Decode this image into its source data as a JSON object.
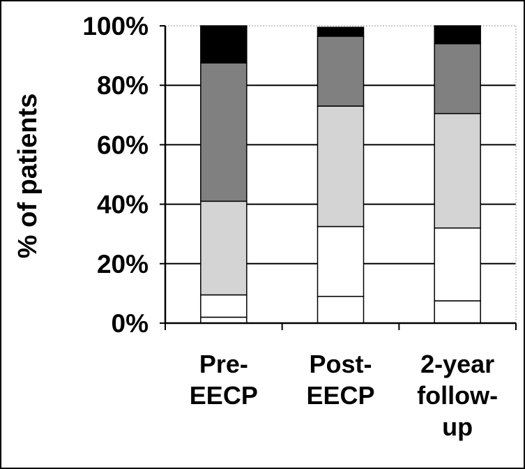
{
  "chart_data": {
    "type": "bar",
    "stacked": true,
    "ylabel": "% of patients",
    "xlabel": "",
    "title": "",
    "ylim": [
      0,
      100
    ],
    "yticks": [
      "0%",
      "20%",
      "40%",
      "60%",
      "80%",
      "100%"
    ],
    "grid": true,
    "legend": "none",
    "categories": [
      [
        "Pre-",
        "EECP"
      ],
      [
        "Post-",
        "EECP"
      ],
      [
        "2-year",
        "follow-",
        "up"
      ]
    ],
    "series": [
      {
        "color": "#ffffff",
        "values": [
          2,
          9,
          7.5
        ]
      },
      {
        "color": "#ffffff",
        "values": [
          7.5,
          23.5,
          24.5
        ]
      },
      {
        "color": "#d4d4d4",
        "values": [
          31.5,
          40.5,
          38.5
        ]
      },
      {
        "color": "#808080",
        "values": [
          46.5,
          23.5,
          23.5
        ]
      },
      {
        "color": "#000000",
        "values": [
          12.5,
          3,
          6
        ]
      }
    ]
  }
}
